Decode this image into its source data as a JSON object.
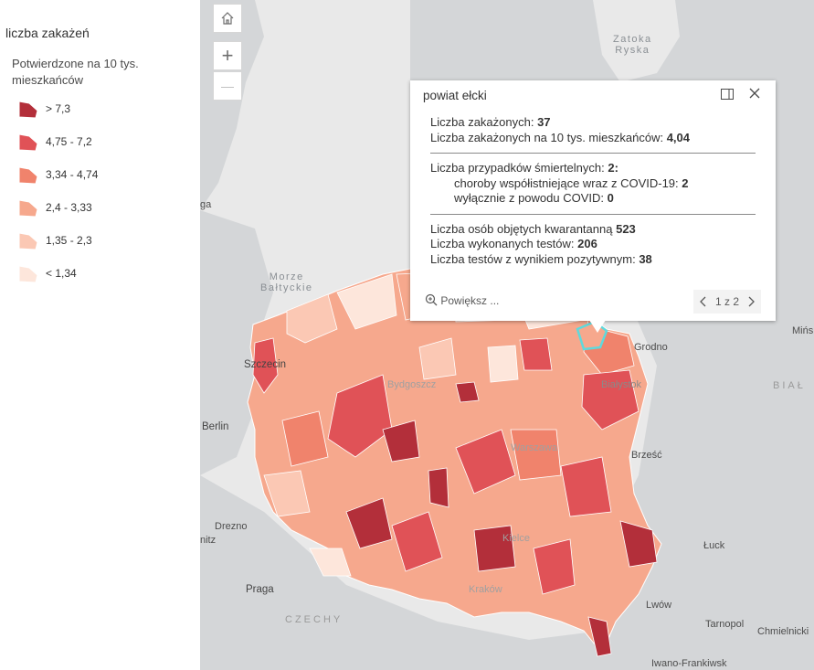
{
  "legend": {
    "title": "liczba zakażeń",
    "subtitle": "Potwierdzone na 10 tys. mieszkańców",
    "items": [
      {
        "label": "> 7,3",
        "color": "#b32f3a"
      },
      {
        "label": "4,75 - 7,2",
        "color": "#e05257"
      },
      {
        "label": "3,34 - 4,74",
        "color": "#f0836c"
      },
      {
        "label": "2,4 - 3,33",
        "color": "#f6a88d"
      },
      {
        "label": "1,35 - 2,3",
        "color": "#fbc8b4"
      },
      {
        "label": "< 1,34",
        "color": "#fde6db"
      }
    ]
  },
  "map_controls": {
    "home_icon": "home-icon",
    "zoom_in": "+",
    "zoom_out": "—"
  },
  "places": {
    "zatoka": "Zatoka\nRyska",
    "morze": "Morze\nBałtyckie",
    "szczecin": "Szczecin",
    "berlin": "Berlin",
    "drezno": "Drezno",
    "praga": "Praga",
    "czechy": "CZECHY",
    "grodno": "Grodno",
    "bialystok": "Białystok",
    "brzesc": "Brześć",
    "luck": "Łuck",
    "lwow": "Lwów",
    "tarnopol": "Tarnopol",
    "chmielnicki": "Chmielnicki",
    "iwano": "Iwano-Frankiwsk",
    "mins": "Mińs",
    "bial": "BIAŁ",
    "bydgoszcz": "Bydgoszcz",
    "warszawa": "Warszawa",
    "kielce": "Kielce",
    "krakow": "Kraków",
    "ga": "ga",
    "nitz": "nitz"
  },
  "popup": {
    "title": "powiat ełcki",
    "cases_label": "Liczba zakażonych:",
    "cases_value": "37",
    "rate_label": "Liczba zakażonych na 10 tys. mieszkańców:",
    "rate_value": "4,04",
    "deaths_label": "Liczba przypadków śmiertelnych:",
    "deaths_value": "2:",
    "comorb_label": "choroby współistniejące wraz z COVID-19:",
    "comorb_value": "2",
    "covid_only_label": "wyłącznie z powodu COVID:",
    "covid_only_value": "0",
    "quarantine_label": "Liczba osób objętych kwarantanną",
    "quarantine_value": "523",
    "tests_label": "Liczba wykonanych testów:",
    "tests_value": "206",
    "positive_label": "Liczba testów z wynikiem pozytywnym:",
    "positive_value": "38",
    "zoom_label": "Powiększ ...",
    "pager": "1 z 2"
  },
  "colors": {
    "water": "#e9e9e9",
    "land": "#d2d4d6",
    "highlight": "#5fd9dc"
  }
}
